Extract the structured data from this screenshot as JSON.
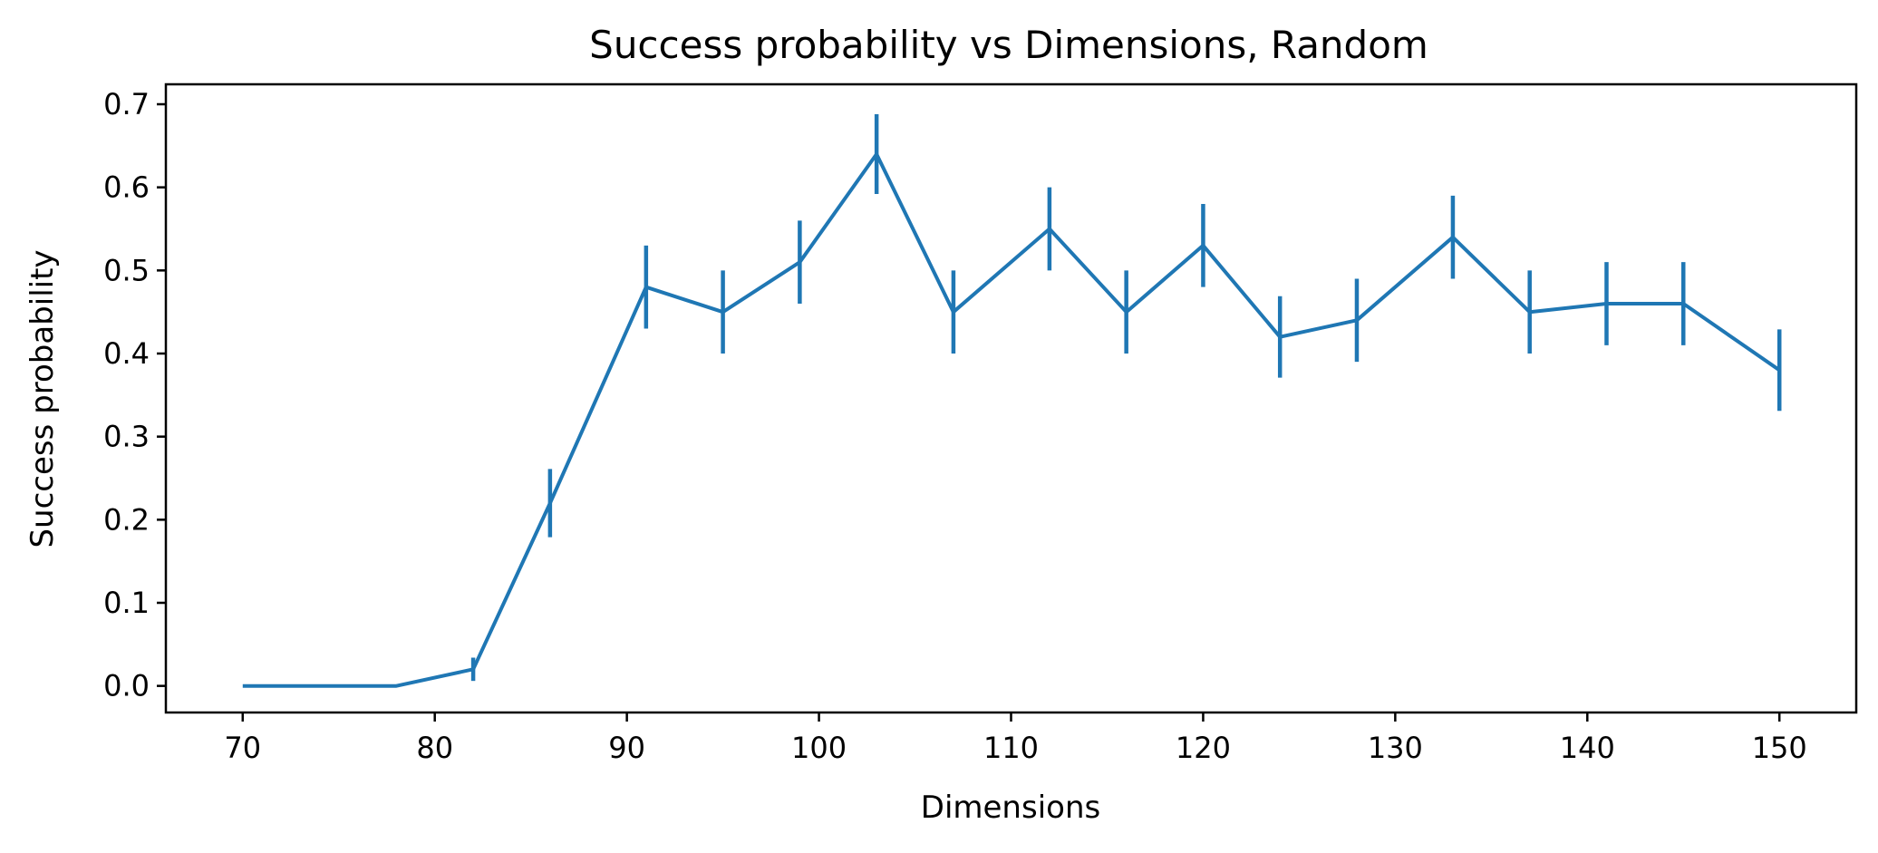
{
  "chart_data": {
    "type": "line",
    "title": "Success probability vs Dimensions, Random",
    "xlabel": "Dimensions",
    "ylabel": "Success probability",
    "xlim": [
      66,
      154
    ],
    "ylim": [
      -0.032,
      0.724
    ],
    "xticks": [
      70,
      80,
      90,
      100,
      110,
      120,
      130,
      140,
      150
    ],
    "xtick_labels": [
      "70",
      "80",
      "90",
      "100",
      "110",
      "120",
      "130",
      "140",
      "150"
    ],
    "yticks": [
      0.0,
      0.1,
      0.2,
      0.3,
      0.4,
      0.5,
      0.6,
      0.7
    ],
    "ytick_labels": [
      "0.0",
      "0.1",
      "0.2",
      "0.3",
      "0.4",
      "0.5",
      "0.6",
      "0.7"
    ],
    "grid": false,
    "legend": "none",
    "series": [
      {
        "color": "#1f77b4",
        "x": [
          70,
          78,
          82,
          86,
          91,
          95,
          99,
          103,
          107,
          112,
          116,
          120,
          124,
          128,
          133,
          137,
          141,
          145,
          150
        ],
        "y": [
          0.0,
          0.0,
          0.02,
          0.22,
          0.48,
          0.45,
          0.51,
          0.64,
          0.45,
          0.55,
          0.45,
          0.53,
          0.42,
          0.44,
          0.54,
          0.45,
          0.46,
          0.46,
          0.38
        ],
        "yerr": [
          0.0,
          0.0,
          0.014,
          0.041,
          0.05,
          0.05,
          0.05,
          0.048,
          0.05,
          0.05,
          0.05,
          0.05,
          0.049,
          0.05,
          0.05,
          0.05,
          0.05,
          0.05,
          0.049
        ]
      }
    ]
  }
}
